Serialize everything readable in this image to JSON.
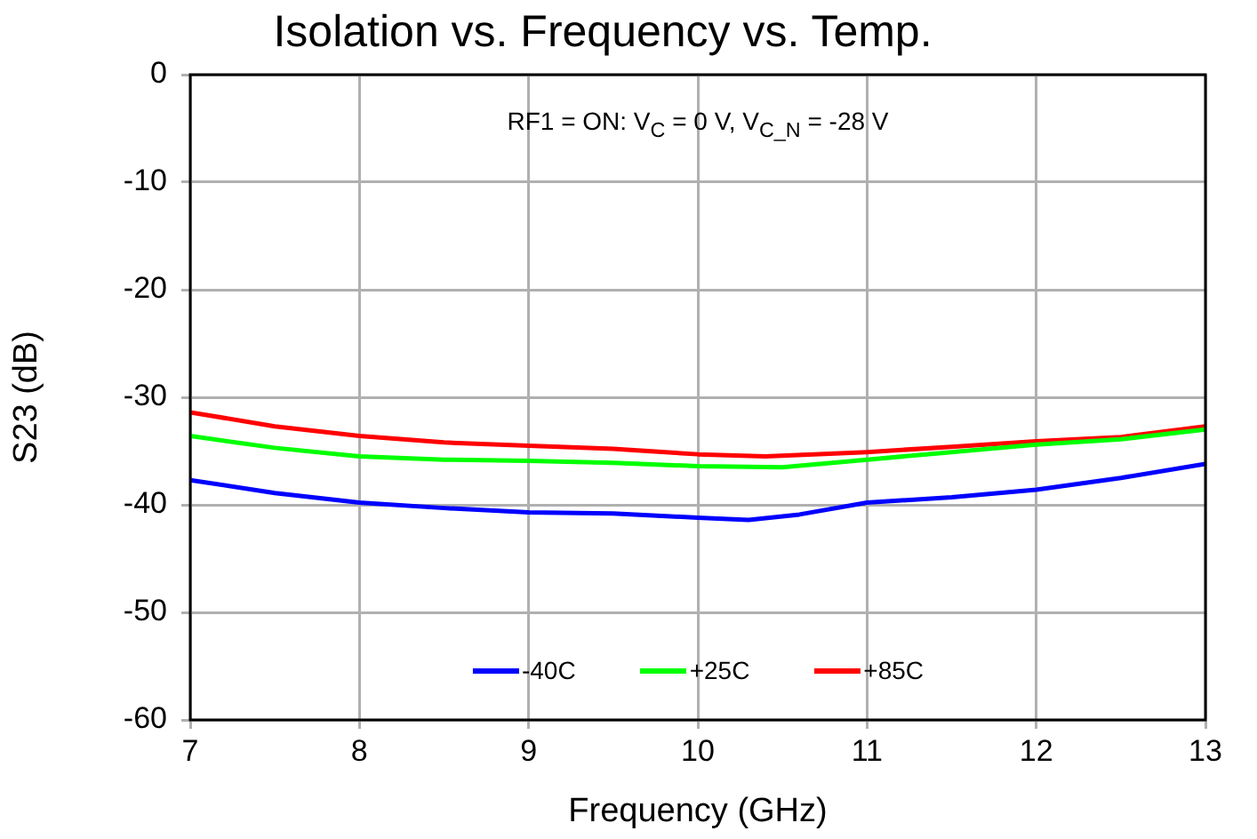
{
  "chart_data": {
    "type": "line",
    "title": "Isolation vs. Frequency vs. Temp.",
    "xlabel": "Frequency (GHz)",
    "ylabel": "S23 (dB)",
    "annotations": [
      "RF1 = ON: V$_{C}$ = 0 V, V$_{C_N}$ = -28 V"
    ],
    "xlim": [
      7,
      13
    ],
    "xticks": [
      7,
      8,
      9,
      10,
      11,
      12,
      13
    ],
    "ylim": [
      -60,
      0
    ],
    "yticks": [
      -60,
      -50,
      -40,
      -30,
      -20,
      -10,
      0
    ],
    "grid": true,
    "legend": "bottom",
    "marker": "none",
    "line_style": "solid",
    "series": [
      {
        "name": "-40C",
        "color": "#0000ff",
        "x": [
          7,
          7.5,
          8,
          8.5,
          9,
          9.5,
          10,
          10.3,
          10.6,
          11,
          11.5,
          12,
          12.5,
          13
        ],
        "values": [
          -37.7,
          -38.9,
          -39.8,
          -40.3,
          -40.7,
          -40.8,
          -41.2,
          -41.4,
          -40.9,
          -39.8,
          -39.3,
          -38.6,
          -37.5,
          -36.2
        ]
      },
      {
        "name": "+25C",
        "color": "#00ff00",
        "x": [
          7,
          7.5,
          8,
          8.5,
          9,
          9.5,
          10,
          10.5,
          11,
          11.5,
          12,
          12.5,
          13
        ],
        "values": [
          -33.6,
          -34.7,
          -35.5,
          -35.8,
          -35.9,
          -36.1,
          -36.4,
          -36.5,
          -35.8,
          -35.1,
          -34.4,
          -33.9,
          -33.0
        ]
      },
      {
        "name": "+85C",
        "color": "#ff0000",
        "x": [
          7,
          7.5,
          8,
          8.5,
          9,
          9.5,
          10,
          10.4,
          11,
          11.5,
          12,
          12.5,
          13
        ],
        "values": [
          -31.4,
          -32.7,
          -33.6,
          -34.2,
          -34.5,
          -34.8,
          -35.3,
          -35.5,
          -35.1,
          -34.6,
          -34.1,
          -33.7,
          -32.7
        ]
      }
    ]
  }
}
